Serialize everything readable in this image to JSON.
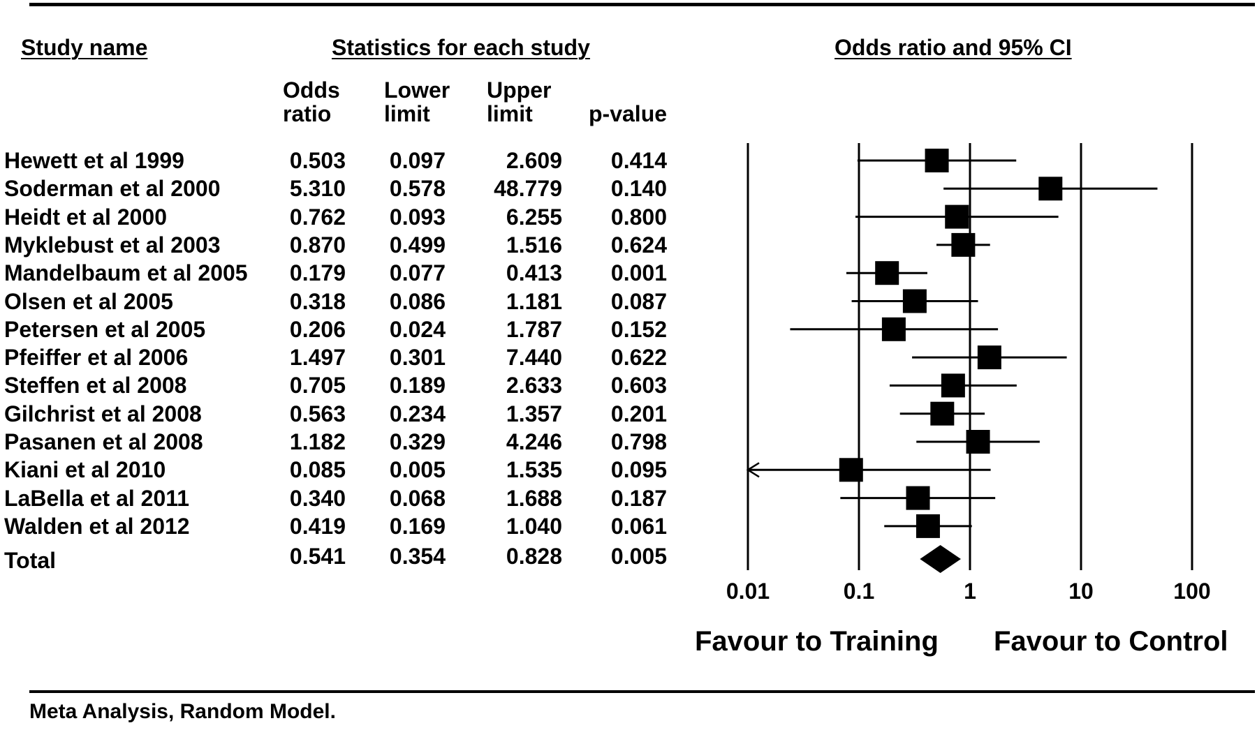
{
  "headers": {
    "study_name": "Study name",
    "statistics": "Statistics for each study",
    "odds_ci": "Odds ratio and 95% CI"
  },
  "columns": {
    "odds_ratio": "Odds\nratio",
    "lower": "Lower\nlimit",
    "upper": "Upper\nlimit",
    "pvalue": "p-value"
  },
  "chart_data": {
    "type": "forest",
    "x_scale": "log",
    "xlim": [
      0.01,
      100
    ],
    "x_ticks": [
      "0.01",
      "0.1",
      "1",
      "10",
      "100"
    ],
    "grid": "vertical lines at ticks",
    "studies": [
      {
        "name": "Hewett et al 1999",
        "or": "0.503",
        "lower": "0.097",
        "upper": "2.609",
        "p": "0.414"
      },
      {
        "name": "Soderman et al 2000",
        "or": "5.310",
        "lower": "0.578",
        "upper": "48.779",
        "p": "0.140"
      },
      {
        "name": "Heidt et al 2000",
        "or": "0.762",
        "lower": "0.093",
        "upper": "6.255",
        "p": "0.800"
      },
      {
        "name": "Myklebust et al 2003",
        "or": "0.870",
        "lower": "0.499",
        "upper": "1.516",
        "p": "0.624"
      },
      {
        "name": "Mandelbaum et al 2005",
        "or": "0.179",
        "lower": "0.077",
        "upper": "0.413",
        "p": "0.001"
      },
      {
        "name": "Olsen et al 2005",
        "or": "0.318",
        "lower": "0.086",
        "upper": "1.181",
        "p": "0.087"
      },
      {
        "name": "Petersen et al 2005",
        "or": "0.206",
        "lower": "0.024",
        "upper": "1.787",
        "p": "0.152"
      },
      {
        "name": "Pfeiffer et al 2006",
        "or": "1.497",
        "lower": "0.301",
        "upper": "7.440",
        "p": "0.622"
      },
      {
        "name": "Steffen et al 2008",
        "or": "0.705",
        "lower": "0.189",
        "upper": "2.633",
        "p": "0.603"
      },
      {
        "name": "Gilchrist et al 2008",
        "or": "0.563",
        "lower": "0.234",
        "upper": "1.357",
        "p": "0.201"
      },
      {
        "name": "Pasanen et al 2008",
        "or": "1.182",
        "lower": "0.329",
        "upper": "4.246",
        "p": "0.798"
      },
      {
        "name": "Kiani et al 2010",
        "or": "0.085",
        "lower": "0.005",
        "upper": "1.535",
        "p": "0.095"
      },
      {
        "name": "LaBella et al 2011",
        "or": "0.340",
        "lower": "0.068",
        "upper": "1.688",
        "p": "0.187"
      },
      {
        "name": "Walden et al 2012",
        "or": "0.419",
        "lower": "0.169",
        "upper": "1.040",
        "p": "0.061"
      }
    ],
    "total": {
      "name": "Total",
      "or": "0.541",
      "lower": "0.354",
      "upper": "0.828",
      "p": "0.005"
    }
  },
  "favour_left": "Favour to Training",
  "favour_right": "Favour to Control",
  "footer": "Meta Analysis, Random Model."
}
